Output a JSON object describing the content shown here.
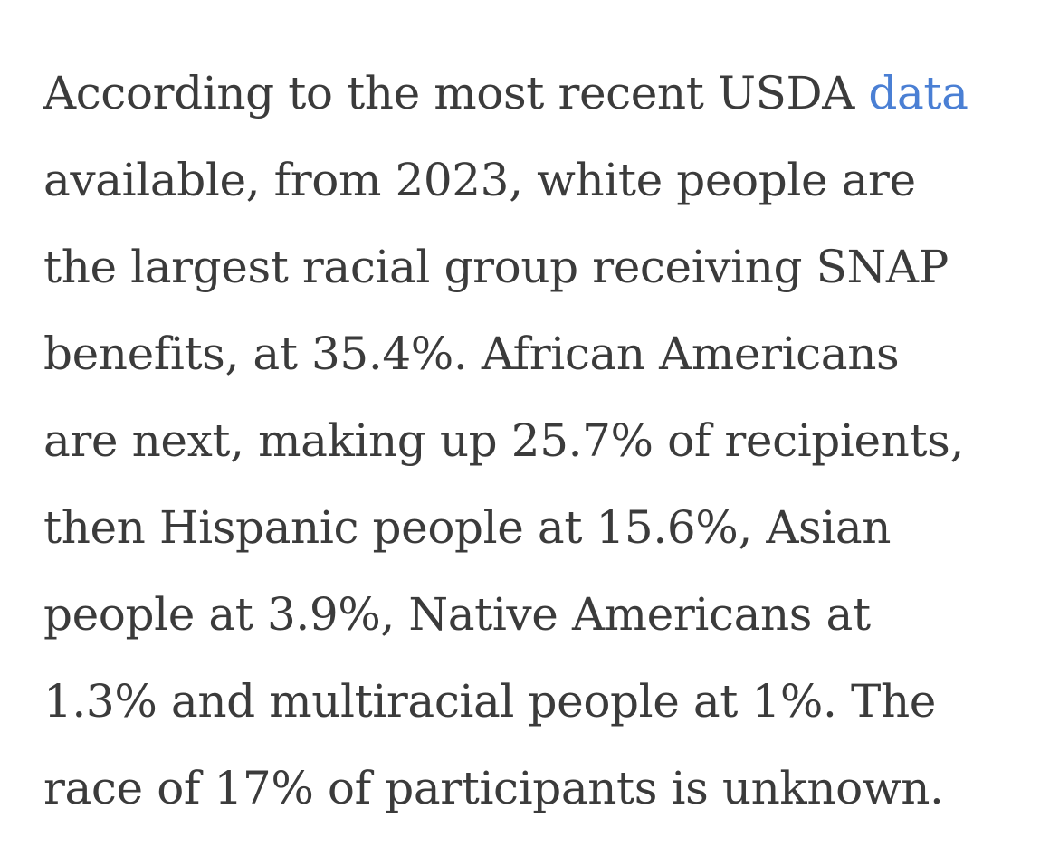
{
  "article": {
    "lines": [
      {
        "before": "According to the most recent USDA ",
        "link": "data"
      },
      {
        "text": "available, from 2023, white people are"
      },
      {
        "text": "the largest racial group receiving SNAP"
      },
      {
        "text": "benefits, at 35.4%. African Americans"
      },
      {
        "text": "are next, making up 25.7% of recipients,"
      },
      {
        "text": "then Hispanic people at 15.6%, Asian"
      },
      {
        "text": "people at 3.9%, Native Americans at"
      },
      {
        "text": "1.3% and multiracial people at 1%. The"
      },
      {
        "text": "race of 17% of participants is unknown."
      }
    ]
  },
  "colors": {
    "text": "#3b3b3b",
    "link": "#4a7fd4",
    "background": "#ffffff"
  }
}
